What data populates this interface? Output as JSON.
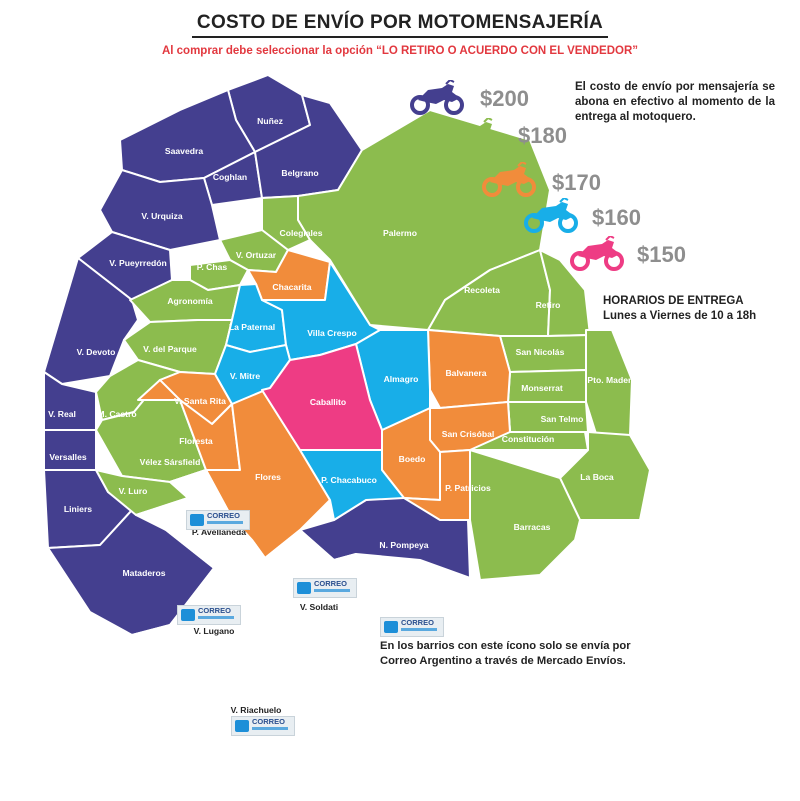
{
  "header": {
    "title": "COSTO DE ENVÍO POR MOTOMENSAJERÍA",
    "subtitle": "Al comprar debe seleccionar la opción “LO RETIRO O ACUERDO CON EL VENDEDOR”"
  },
  "colors": {
    "tier_200": "#443f8f",
    "tier_180": "#8cbc4e",
    "tier_170": "#f18c3b",
    "tier_160": "#18aee8",
    "tier_150": "#ee3c84",
    "correo": "#ffffff"
  },
  "legend": {
    "tiers": [
      {
        "price": "$200",
        "color_key": "tier_200",
        "icon": "motorcycle-icon"
      },
      {
        "price": "$180",
        "color_key": "tier_180",
        "icon": "motorcycle-icon"
      },
      {
        "price": "$170",
        "color_key": "tier_170",
        "icon": "motorcycle-icon"
      },
      {
        "price": "$160",
        "color_key": "tier_160",
        "icon": "motorcycle-icon"
      },
      {
        "price": "$150",
        "color_key": "tier_150",
        "icon": "motorcycle-icon"
      }
    ]
  },
  "info": {
    "payment_note": "El costo de envío por mensajería se abona en efectivo al momento de la entrega al motoquero.",
    "hours_title": "HORARIOS DE ENTREGA",
    "hours_detail": "Lunes a Viernes de 10 a 18h",
    "correo_note_line1": "En los barrios con este ícono solo se envía por",
    "correo_note_line2": "Correo Argentino a través de Mercado Envíos."
  },
  "correo_logo": {
    "line1": "CORREO",
    "line2": "ARGENTINO"
  },
  "neighborhoods": [
    {
      "name": "Nuñez",
      "tier": "tier_200"
    },
    {
      "name": "Saavedra",
      "tier": "tier_200"
    },
    {
      "name": "Coghlan",
      "tier": "tier_200"
    },
    {
      "name": "Belgrano",
      "tier": "tier_200"
    },
    {
      "name": "V. Urquiza",
      "tier": "tier_200"
    },
    {
      "name": "V. Pueyrredón",
      "tier": "tier_200"
    },
    {
      "name": "V. Devoto",
      "tier": "tier_200"
    },
    {
      "name": "V. Real",
      "tier": "tier_200"
    },
    {
      "name": "Versalles",
      "tier": "tier_200"
    },
    {
      "name": "Liniers",
      "tier": "tier_200"
    },
    {
      "name": "Mataderos",
      "tier": "tier_200"
    },
    {
      "name": "N. Pompeya",
      "tier": "tier_200"
    },
    {
      "name": "Palermo",
      "tier": "tier_180"
    },
    {
      "name": "Colegiales",
      "tier": "tier_180"
    },
    {
      "name": "V. Ortuzar",
      "tier": "tier_180"
    },
    {
      "name": "P. Chas",
      "tier": "tier_180"
    },
    {
      "name": "Agronomía",
      "tier": "tier_180"
    },
    {
      "name": "V. del Parque",
      "tier": "tier_180"
    },
    {
      "name": "M. Castro",
      "tier": "tier_180"
    },
    {
      "name": "Vélez Sársfield",
      "tier": "tier_180"
    },
    {
      "name": "V. Luro",
      "tier": "tier_180"
    },
    {
      "name": "Recoleta",
      "tier": "tier_180"
    },
    {
      "name": "Retiro",
      "tier": "tier_180"
    },
    {
      "name": "San Nicolás",
      "tier": "tier_180"
    },
    {
      "name": "Monserrat",
      "tier": "tier_180"
    },
    {
      "name": "San Telmo",
      "tier": "tier_180"
    },
    {
      "name": "Pto. Madero",
      "tier": "tier_180"
    },
    {
      "name": "Constitución",
      "tier": "tier_180"
    },
    {
      "name": "La Boca",
      "tier": "tier_180"
    },
    {
      "name": "Barracas",
      "tier": "tier_180"
    },
    {
      "name": "Chacarita",
      "tier": "tier_170"
    },
    {
      "name": "V. Santa Rita",
      "tier": "tier_170"
    },
    {
      "name": "Floresta",
      "tier": "tier_170"
    },
    {
      "name": "Flores",
      "tier": "tier_170"
    },
    {
      "name": "Balvanera",
      "tier": "tier_170"
    },
    {
      "name": "San Crisóbal",
      "tier": "tier_170"
    },
    {
      "name": "Boedo",
      "tier": "tier_170"
    },
    {
      "name": "P. Patricios",
      "tier": "tier_170"
    },
    {
      "name": "La Paternal",
      "tier": "tier_160"
    },
    {
      "name": "Villa Crespo",
      "tier": "tier_160"
    },
    {
      "name": "V. Mitre",
      "tier": "tier_160"
    },
    {
      "name": "Almagro",
      "tier": "tier_160"
    },
    {
      "name": "P. Chacabuco",
      "tier": "tier_160"
    },
    {
      "name": "Caballito",
      "tier": "tier_150"
    },
    {
      "name": "P. Avellaneda",
      "tier": "correo"
    },
    {
      "name": "V. Soldati",
      "tier": "correo"
    },
    {
      "name": "V. Lugano",
      "tier": "correo"
    },
    {
      "name": "V. Riachuelo",
      "tier": "correo"
    }
  ]
}
